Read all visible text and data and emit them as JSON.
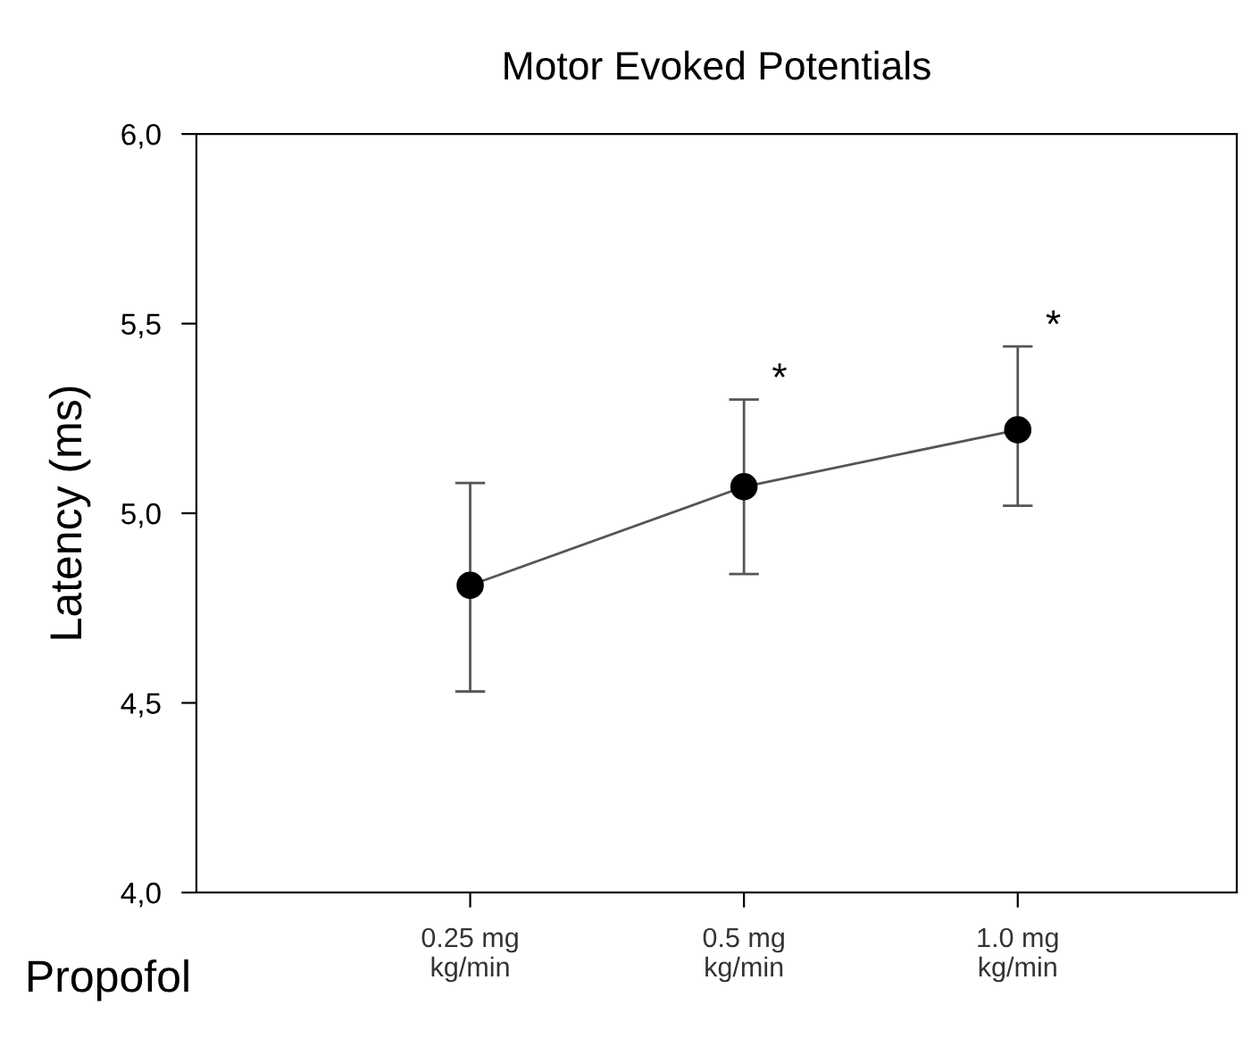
{
  "chart_data": {
    "type": "line",
    "title": "Motor Evoked Potentials",
    "ylabel": "Latency (ms)",
    "categories": [
      "0.25 mg\nkg/min",
      "0.5 mg\nkg/min",
      "1.0 mg\nkg/min"
    ],
    "series": [
      {
        "color": "#000000",
        "values": [
          4.81,
          5.07,
          5.22
        ],
        "errors": [
          [
            4.53,
            5.08
          ],
          [
            4.84,
            5.3
          ],
          [
            5.02,
            5.44
          ]
        ]
      }
    ],
    "ylim": [
      4.0,
      6.0
    ],
    "yticks": [
      {
        "value": 4.0,
        "label": "4,0"
      },
      {
        "value": 4.5,
        "label": "4,5"
      },
      {
        "value": 5.0,
        "label": "5,0"
      },
      {
        "value": 5.5,
        "label": "5,5"
      },
      {
        "value": 6.0,
        "label": "6,0"
      }
    ],
    "marker": "circle",
    "line_style": "solid",
    "grid": false,
    "annotations": [
      "Propofol",
      "*",
      "*"
    ]
  }
}
